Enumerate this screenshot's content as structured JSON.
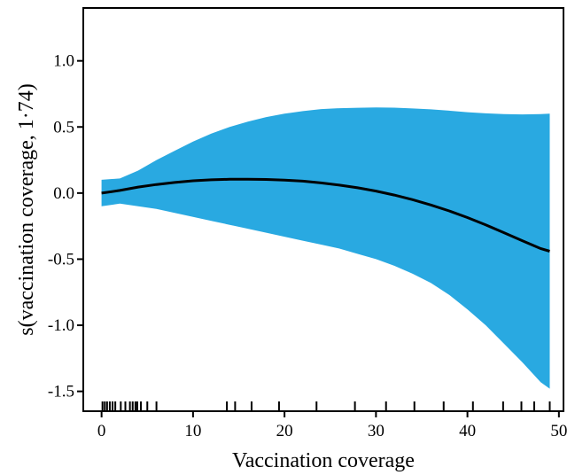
{
  "chart_data": {
    "type": "line",
    "title": "",
    "xlabel": "Vaccination coverage",
    "ylabel": "s(vaccination coverage, 1·74)",
    "xlim": [
      -2,
      50.5
    ],
    "ylim": [
      -1.65,
      1.4
    ],
    "xticks": [
      0,
      10,
      20,
      30,
      40,
      50
    ],
    "xtick_labels": [
      "0",
      "10",
      "20",
      "30",
      "40",
      "50"
    ],
    "yticks": [
      -1.5,
      -1.0,
      -0.5,
      0.0,
      0.5,
      1.0
    ],
    "ytick_labels": [
      "-1.5",
      "-1.0",
      "-0.5",
      "0.0",
      "0.5",
      "1.0"
    ],
    "band_color": "#29a9e1",
    "line_color": "#000000",
    "fit": {
      "x": [
        0,
        2,
        4,
        6,
        8,
        10,
        12,
        14,
        16,
        18,
        20,
        22,
        24,
        26,
        28,
        30,
        32,
        34,
        36,
        38,
        40,
        42,
        44,
        46,
        48,
        49
      ],
      "y": [
        0.0,
        0.02,
        0.045,
        0.065,
        0.08,
        0.093,
        0.1,
        0.104,
        0.105,
        0.103,
        0.098,
        0.09,
        0.077,
        0.06,
        0.04,
        0.015,
        -0.015,
        -0.05,
        -0.09,
        -0.135,
        -0.185,
        -0.24,
        -0.3,
        -0.36,
        -0.42,
        -0.44
      ],
      "upper": [
        0.1,
        0.11,
        0.17,
        0.25,
        0.32,
        0.39,
        0.45,
        0.5,
        0.54,
        0.575,
        0.6,
        0.62,
        0.635,
        0.642,
        0.645,
        0.647,
        0.646,
        0.64,
        0.633,
        0.623,
        0.612,
        0.603,
        0.597,
        0.595,
        0.597,
        0.6
      ],
      "lower": [
        -0.1,
        -0.08,
        -0.1,
        -0.12,
        -0.15,
        -0.18,
        -0.21,
        -0.24,
        -0.27,
        -0.3,
        -0.33,
        -0.36,
        -0.39,
        -0.42,
        -0.46,
        -0.5,
        -0.55,
        -0.61,
        -0.68,
        -0.77,
        -0.88,
        -1.0,
        -1.14,
        -1.28,
        -1.43,
        -1.48
      ]
    },
    "rug": [
      0.1,
      0.35,
      0.6,
      0.9,
      1.2,
      1.5,
      2.1,
      2.6,
      3.1,
      3.4,
      3.7,
      3.9,
      4.3,
      5.0,
      6.0,
      13.7,
      14.6,
      16.4,
      19.4,
      23.5,
      27.7,
      31.1,
      34.2,
      37.4,
      40.6,
      43.9,
      45.9,
      47.3,
      49.0
    ]
  }
}
